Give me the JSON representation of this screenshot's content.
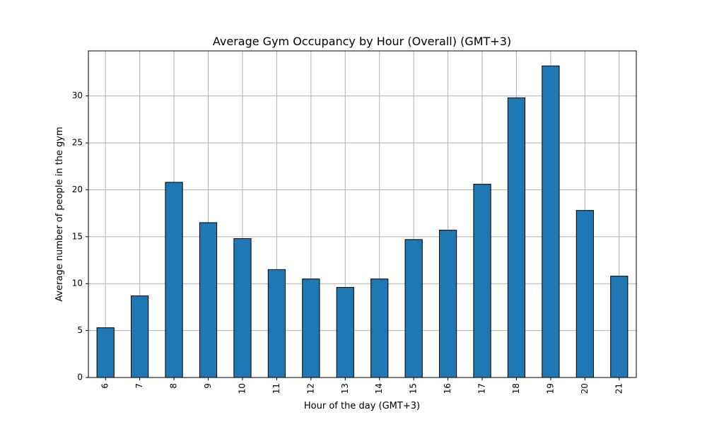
{
  "chart_data": {
    "type": "bar",
    "title": "Average Gym Occupancy by Hour (Overall) (GMT+3)",
    "xlabel": "Hour of the day (GMT+3)",
    "ylabel": "Average number of people in the gym",
    "categories": [
      "6",
      "7",
      "8",
      "9",
      "10",
      "11",
      "12",
      "13",
      "14",
      "15",
      "16",
      "17",
      "18",
      "19",
      "20",
      "21"
    ],
    "values": [
      5.3,
      8.7,
      20.8,
      16.5,
      14.8,
      11.5,
      10.5,
      9.6,
      10.5,
      14.7,
      15.7,
      20.6,
      29.8,
      33.2,
      17.8,
      10.8
    ],
    "ylim": [
      0,
      34.8
    ],
    "yticks": [
      0,
      5,
      10,
      15,
      20,
      25,
      30
    ],
    "grid": true,
    "legend": "none",
    "colors": {
      "bar_fill": "#1f77b4",
      "bar_edge": "#000000",
      "grid": "#b0b0b0",
      "axes": "#000000"
    }
  }
}
